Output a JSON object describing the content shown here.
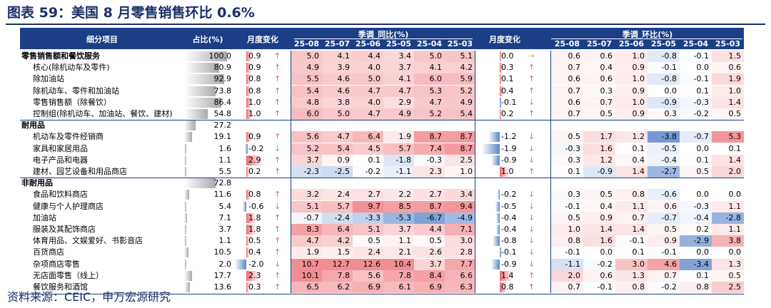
{
  "title": "图表 59：美国 8 月零售销售环比 0.6%",
  "footer": "资料来源：CEIC，申万宏源研究",
  "header": {
    "col_name": "细分项目",
    "col_share": "占比(%)",
    "col_mom": "月度变化",
    "group_yoy": "季调_同比(%)",
    "col_mom2": "月度变化",
    "group_qoq": "季调_环比(%)",
    "months": [
      "25-08",
      "25-07",
      "25-06",
      "25-05",
      "25-04",
      "25-03"
    ]
  },
  "rows": [
    {
      "name": "零售销售额和餐饮服务",
      "level": 0,
      "share": "100.0",
      "mom": "0.9",
      "mom_dir": "up",
      "yoy": [
        "5.0",
        "4.1",
        "4.4",
        "3.4",
        "5.0",
        "5.1"
      ],
      "mom2": "0.0",
      "mom2_dir": "flat",
      "qoq": [
        "0.6",
        "0.6",
        "1.0",
        "-0.8",
        "-0.1",
        "1.5"
      ]
    },
    {
      "name": "核心(除机动车及零件)",
      "level": 1,
      "share": "80.9",
      "mom": "0.9",
      "mom_dir": "up",
      "yoy": [
        "4.9",
        "3.9",
        "4.0",
        "3.7",
        "4.1",
        "4.2"
      ],
      "mom2": "0.3",
      "mom2_dir": "up",
      "qoq": [
        "0.7",
        "0.4",
        "0.9",
        "-0.1",
        "0.0",
        "0.6"
      ]
    },
    {
      "name": "除加油站",
      "level": 1,
      "share": "92.9",
      "mom": "0.8",
      "mom_dir": "up",
      "yoy": [
        "5.5",
        "4.6",
        "5.0",
        "4.1",
        "6.0",
        "5.9"
      ],
      "mom2": "0.1",
      "mom2_dir": "up",
      "qoq": [
        "0.6",
        "0.6",
        "1.0",
        "-0.8",
        "-0.1",
        "1.9"
      ]
    },
    {
      "name": "除机动车、零件和加油站",
      "level": 1,
      "share": "73.8",
      "mom": "0.8",
      "mom_dir": "up",
      "yoy": [
        "5.4",
        "4.6",
        "4.7",
        "4.7",
        "5.3",
        "5.2"
      ],
      "mom2": "0.4",
      "mom2_dir": "up",
      "qoq": [
        "0.7",
        "0.3",
        "0.9",
        "0.0",
        "0.1",
        "1.0"
      ]
    },
    {
      "name": "零售销售额（除餐饮）",
      "level": 1,
      "share": "86.4",
      "mom": "1.0",
      "mom_dir": "up",
      "yoy": [
        "4.8",
        "3.8",
        "4.0",
        "2.9",
        "4.7",
        "4.9"
      ],
      "mom2": "-0.1",
      "mom2_dir": "down",
      "qoq": [
        "0.6",
        "0.7",
        "1.0",
        "-0.9",
        "-0.3",
        "1.4"
      ]
    },
    {
      "name": "控制组(除机动车、加油站、餐饮、建材)",
      "level": 1,
      "share": "54.8",
      "mom": "1.0",
      "mom_dir": "up",
      "yoy": [
        "6.0",
        "5.0",
        "4.7",
        "4.9",
        "5.2",
        "5.4"
      ],
      "mom2": "0.2",
      "mom2_dir": "up",
      "qoq": [
        "0.7",
        "0.5",
        "0.9",
        "0.3",
        "-0.2",
        "0.5"
      ]
    },
    {
      "name": "耐用品",
      "level": 0,
      "share": "27.2",
      "section": true
    },
    {
      "name": "机动车及零件经销商",
      "level": 1,
      "share": "19.1",
      "mom": "0.9",
      "mom_dir": "up",
      "yoy": [
        "5.6",
        "4.7",
        "6.4",
        "1.9",
        "8.7",
        "8.7"
      ],
      "mom2": "-1.2",
      "mom2_dir": "down",
      "qoq": [
        "0.5",
        "1.7",
        "1.2",
        "-3.8",
        "-0.7",
        "5.3"
      ]
    },
    {
      "name": "家具和家居用品",
      "level": 1,
      "share": "1.6",
      "mom": "-0.2",
      "mom_dir": "down",
      "yoy": [
        "5.2",
        "5.4",
        "4.5",
        "5.7",
        "7.4",
        "8.7"
      ],
      "mom2": "-1.9",
      "mom2_dir": "down",
      "qoq": [
        "-0.3",
        "1.6",
        "0.1",
        "-0.5",
        "0.0",
        "0.1"
      ]
    },
    {
      "name": "电子产品和电器",
      "level": 1,
      "share": "1.1",
      "mom": "2.9",
      "mom_dir": "up",
      "yoy": [
        "3.7",
        "0.9",
        "0.1",
        "-1.8",
        "-0.3",
        "2.5"
      ],
      "mom2": "-0.9",
      "mom2_dir": "down",
      "qoq": [
        "0.3",
        "1.2",
        "0.4",
        "-0.4",
        "0.1",
        "1.4"
      ]
    },
    {
      "name": "建材、园艺设备和用品商店",
      "level": 1,
      "share": "5.5",
      "mom": "0.2",
      "mom_dir": "up",
      "yoy": [
        "-2.3",
        "-2.5",
        "-0.2",
        "-1.1",
        "2.3",
        "1.0"
      ],
      "mom2": "1.0",
      "mom2_dir": "up",
      "qoq": [
        "0.1",
        "-0.9",
        "1.4",
        "-2.7",
        "0.5",
        "2.0"
      ]
    },
    {
      "name": "非耐用品",
      "level": 0,
      "share": "72.8",
      "section": true
    },
    {
      "name": "食品和饮料商店",
      "level": 1,
      "share": "11.6",
      "mom": "0.8",
      "mom_dir": "up",
      "yoy": [
        "3.2",
        "2.4",
        "2.7",
        "2.2",
        "2.7",
        "3.4"
      ],
      "mom2": "-0.2",
      "mom2_dir": "down",
      "qoq": [
        "0.3",
        "0.5",
        "0.8",
        "-0.6",
        "0.0",
        "0.0"
      ]
    },
    {
      "name": "健康与个人护理商店",
      "level": 1,
      "share": "5.4",
      "mom": "-0.6",
      "mom_dir": "down",
      "yoy": [
        "5.1",
        "5.7",
        "9.7",
        "8.5",
        "8.7",
        "9.4"
      ],
      "mom2": "-0.5",
      "mom2_dir": "down",
      "qoq": [
        "-0.1",
        "0.4",
        "1.1",
        "0.6",
        "-0.3",
        "1.1"
      ]
    },
    {
      "name": "加油站",
      "level": 1,
      "share": "7.1",
      "mom": "1.8",
      "mom_dir": "up",
      "yoy": [
        "-0.7",
        "-2.4",
        "-3.3",
        "-5.3",
        "-6.7",
        "-4.9"
      ],
      "mom2": "-0.4",
      "mom2_dir": "down",
      "qoq": [
        "0.5",
        "0.9",
        "0.7",
        "-0.7",
        "-0.4",
        "-2.8"
      ]
    },
    {
      "name": "服装及其配饰商店",
      "level": 1,
      "share": "3.7",
      "mom": "1.8",
      "mom_dir": "up",
      "yoy": [
        "8.3",
        "6.4",
        "5.1",
        "3.7",
        "4.4",
        "7.1"
      ],
      "mom2": "-0.4",
      "mom2_dir": "down",
      "qoq": [
        "1.0",
        "1.4",
        "1.4",
        "0.5",
        "0.2",
        "1.1"
      ]
    },
    {
      "name": "体育用品、文娱爱好、书影音店",
      "level": 1,
      "share": "1.1",
      "mom": "0.5",
      "mom_dir": "up",
      "yoy": [
        "4.7",
        "4.2",
        "0.5",
        "1.1",
        "0.5",
        "3.0"
      ],
      "mom2": "-0.8",
      "mom2_dir": "down",
      "qoq": [
        "0.8",
        "1.6",
        "-0.1",
        "0.9",
        "-2.9",
        "3.8"
      ]
    },
    {
      "name": "百货商店",
      "level": 1,
      "share": "10.5",
      "mom": "0.4",
      "mom_dir": "up",
      "yoy": [
        "1.9",
        "1.5",
        "2.4",
        "2.1",
        "2.6",
        "2.8"
      ],
      "mom2": "-0.1",
      "mom2_dir": "down",
      "qoq": [
        "-0.1",
        "0.0",
        "0.1",
        "-0.1",
        "0.0",
        "0.0"
      ]
    },
    {
      "name": "杂项商店零售",
      "level": 1,
      "share": "2.0",
      "mom": "-2.0",
      "mom_dir": "down",
      "yoy": [
        "10.7",
        "12.7",
        "12.6",
        "10.4",
        "3.7",
        "7.7"
      ],
      "mom2": "-0.9",
      "mom2_dir": "down",
      "qoq": [
        "-1.1",
        "-0.2",
        "3.0",
        "4.6",
        "-3.4",
        "1.3"
      ]
    },
    {
      "name": "无店面零售（线上）",
      "level": 1,
      "share": "17.7",
      "mom": "2.3",
      "mom_dir": "up",
      "yoy": [
        "10.1",
        "7.8",
        "5.6",
        "7.8",
        "8.4",
        "6.6"
      ],
      "mom2": "1.4",
      "mom2_dir": "up",
      "qoq": [
        "2.0",
        "0.6",
        "1.3",
        "0.7",
        "0.1",
        "0.5"
      ]
    },
    {
      "name": "餐饮服务和酒馆",
      "level": 1,
      "share": "13.6",
      "mom": "0.3",
      "mom_dir": "up",
      "yoy": [
        "6.5",
        "6.2",
        "6.9",
        "6.1",
        "6.9",
        "6.3"
      ],
      "mom2": "0.8",
      "mom2_dir": "up",
      "qoq": [
        "0.7",
        "-0.1",
        "0.8",
        "-0.2",
        "0.8",
        "2.5"
      ]
    }
  ],
  "colors": {
    "header_bg": "#1b3f87",
    "pos": "#e8555e",
    "neg": "#5b86cc",
    "title": "#1b2f6a"
  }
}
